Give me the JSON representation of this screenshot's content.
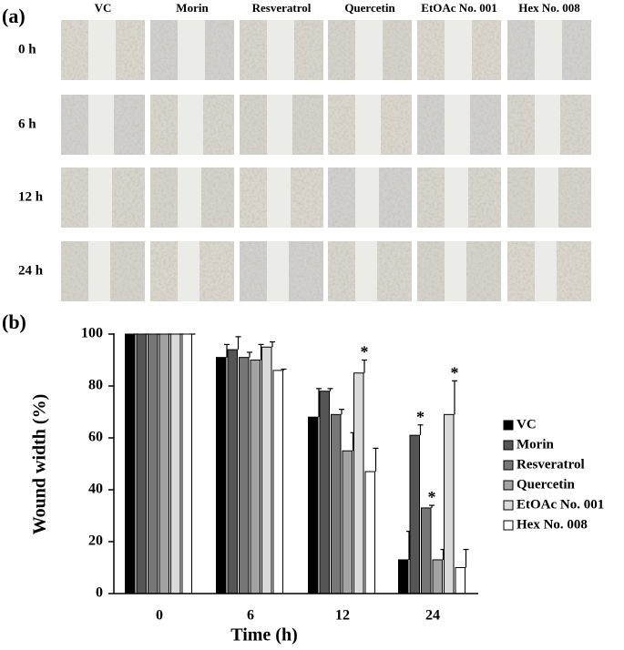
{
  "panel_a": {
    "label": "(a)",
    "columns": [
      "VC",
      "Morin",
      "Resveratrol",
      "Quercetin",
      "EtOAc No. 001",
      "Hex No. 008"
    ],
    "rows": [
      "0 h",
      "6 h",
      "12 h",
      "24 h"
    ]
  },
  "chart_data": {
    "type": "bar",
    "label": "(b)",
    "xlabel": "Time (h)",
    "ylabel": "Wound width (%)",
    "categories": [
      "0",
      "6",
      "12",
      "24"
    ],
    "series": [
      {
        "name": "VC",
        "color": "#000000",
        "values": [
          100,
          91,
          68,
          13
        ],
        "errors": [
          0,
          5,
          11,
          11
        ]
      },
      {
        "name": "Morin",
        "color": "#555555",
        "values": [
          100,
          94,
          78,
          61
        ],
        "errors": [
          0,
          5,
          1,
          4
        ]
      },
      {
        "name": "Resveratrol",
        "color": "#777777",
        "values": [
          100,
          91,
          69,
          33
        ],
        "errors": [
          0,
          2,
          2,
          1
        ]
      },
      {
        "name": "Quercetin",
        "color": "#a3a3a3",
        "values": [
          100,
          90,
          55,
          13
        ],
        "errors": [
          0,
          6,
          7,
          4
        ]
      },
      {
        "name": "EtOAc No. 001",
        "color": "#dadada",
        "values": [
          100,
          95,
          85,
          69
        ],
        "errors": [
          0,
          2,
          5,
          13
        ]
      },
      {
        "name": "Hex No. 008",
        "color": "#ffffff",
        "values": [
          100,
          86,
          47,
          10
        ],
        "errors": [
          0,
          0.5,
          9,
          7
        ]
      }
    ],
    "annotations": [
      {
        "text": "*",
        "series": "EtOAc No. 001",
        "category": "12"
      },
      {
        "text": "*",
        "series": "Morin",
        "category": "24"
      },
      {
        "text": "*",
        "series": "Resveratrol",
        "category": "24"
      },
      {
        "text": "*",
        "series": "EtOAc No. 001",
        "category": "24"
      }
    ],
    "ylim": [
      0,
      100
    ],
    "yticks": [
      0,
      20,
      40,
      60,
      80,
      100
    ],
    "legend": "right"
  }
}
